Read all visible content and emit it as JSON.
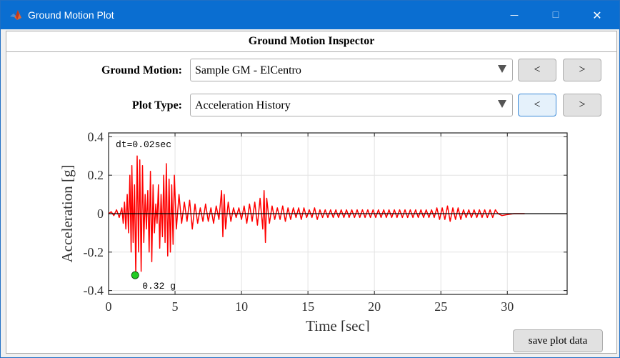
{
  "window": {
    "title": "Ground Motion Plot",
    "controls": [
      "—",
      "☐",
      "✕"
    ]
  },
  "panel": {
    "title": "Ground Motion Inspector",
    "ground_motion": {
      "label": "Ground Motion:",
      "value": "Sample GM - ElCentro",
      "prev": "<",
      "next": ">"
    },
    "plot_type": {
      "label": "Plot Type:",
      "value": "Acceleration History",
      "prev": "<",
      "next": ">"
    },
    "save_button": "save plot data"
  },
  "chart_data": {
    "type": "line",
    "title": "",
    "xlabel": "Time [sec]",
    "ylabel": "Acceleration [g]",
    "xlim": [
      0,
      34.5
    ],
    "ylim": [
      -0.42,
      0.42
    ],
    "xticks": [
      0,
      5,
      10,
      15,
      20,
      25,
      30
    ],
    "xtick_labels": [
      "0",
      "5",
      "10",
      "15",
      "20",
      "25",
      "30"
    ],
    "yticks": [
      -0.4,
      -0.2,
      0,
      0.2,
      0.4
    ],
    "ytick_labels": [
      "-0.4",
      "-0.2",
      "0",
      "0.2",
      "0.4"
    ],
    "grid": true,
    "line_color": "#ff0000",
    "annotations": {
      "dt": "dt=0.02sec",
      "peak_label": "0.32 g"
    },
    "peak_marker": {
      "x": 2.0,
      "y": -0.32,
      "color": "#22cc22"
    },
    "series": [
      {
        "values": [
          [
            0,
            0
          ],
          [
            0.2,
            0.01
          ],
          [
            0.4,
            -0.01
          ],
          [
            0.6,
            0.02
          ],
          [
            0.8,
            -0.02
          ],
          [
            1.0,
            0.03
          ],
          [
            1.1,
            -0.05
          ],
          [
            1.2,
            0.06
          ],
          [
            1.3,
            -0.08
          ],
          [
            1.4,
            0.1
          ],
          [
            1.5,
            -0.1
          ],
          [
            1.6,
            0.2
          ],
          [
            1.7,
            -0.2
          ],
          [
            1.75,
            0.25
          ],
          [
            1.85,
            -0.15
          ],
          [
            1.95,
            0.15
          ],
          [
            2.05,
            -0.32
          ],
          [
            2.15,
            0.3
          ],
          [
            2.25,
            -0.2
          ],
          [
            2.35,
            0.28
          ],
          [
            2.45,
            -0.3
          ],
          [
            2.55,
            0.25
          ],
          [
            2.65,
            -0.15
          ],
          [
            2.75,
            0.1
          ],
          [
            2.85,
            -0.08
          ],
          [
            2.95,
            0.12
          ],
          [
            3.05,
            -0.2
          ],
          [
            3.15,
            0.22
          ],
          [
            3.25,
            -0.25
          ],
          [
            3.35,
            0.15
          ],
          [
            3.45,
            -0.1
          ],
          [
            3.55,
            0.05
          ],
          [
            3.65,
            -0.05
          ],
          [
            3.75,
            0.15
          ],
          [
            3.85,
            -0.18
          ],
          [
            3.95,
            0.1
          ],
          [
            4.05,
            -0.12
          ],
          [
            4.15,
            0.2
          ],
          [
            4.25,
            -0.15
          ],
          [
            4.35,
            0.26
          ],
          [
            4.45,
            -0.22
          ],
          [
            4.55,
            0.18
          ],
          [
            4.65,
            -0.2
          ],
          [
            4.75,
            0.15
          ],
          [
            4.85,
            -0.16
          ],
          [
            4.95,
            0.2
          ],
          [
            5.1,
            -0.08
          ],
          [
            5.3,
            0.1
          ],
          [
            5.5,
            -0.05
          ],
          [
            5.7,
            0.06
          ],
          [
            5.9,
            -0.04
          ],
          [
            6.1,
            0.07
          ],
          [
            6.3,
            -0.08
          ],
          [
            6.5,
            0.05
          ],
          [
            6.7,
            -0.05
          ],
          [
            6.9,
            0.03
          ],
          [
            7.1,
            -0.04
          ],
          [
            7.3,
            0.05
          ],
          [
            7.5,
            -0.04
          ],
          [
            7.7,
            0.03
          ],
          [
            7.9,
            -0.05
          ],
          [
            8.1,
            0.04
          ],
          [
            8.3,
            -0.03
          ],
          [
            8.5,
            0.12
          ],
          [
            8.6,
            -0.12
          ],
          [
            8.7,
            0.1
          ],
          [
            8.8,
            -0.08
          ],
          [
            9.0,
            0.06
          ],
          [
            9.2,
            -0.04
          ],
          [
            9.4,
            0.03
          ],
          [
            9.6,
            -0.02
          ],
          [
            9.8,
            0.03
          ],
          [
            10.0,
            -0.03
          ],
          [
            10.2,
            0.04
          ],
          [
            10.4,
            -0.05
          ],
          [
            10.6,
            0.05
          ],
          [
            10.8,
            -0.04
          ],
          [
            11.0,
            0.06
          ],
          [
            11.2,
            -0.06
          ],
          [
            11.4,
            0.08
          ],
          [
            11.6,
            -0.08
          ],
          [
            11.7,
            0.12
          ],
          [
            11.8,
            -0.15
          ],
          [
            11.9,
            0.08
          ],
          [
            12.1,
            -0.05
          ],
          [
            12.3,
            0.04
          ],
          [
            12.5,
            -0.03
          ],
          [
            12.7,
            0.03
          ],
          [
            12.9,
            -0.03
          ],
          [
            13.1,
            0.04
          ],
          [
            13.3,
            -0.04
          ],
          [
            13.5,
            0.03
          ],
          [
            13.7,
            -0.03
          ],
          [
            13.9,
            0.03
          ],
          [
            14.1,
            -0.02
          ],
          [
            14.3,
            0.03
          ],
          [
            14.5,
            -0.03
          ],
          [
            14.7,
            0.03
          ],
          [
            14.9,
            -0.02
          ],
          [
            15.1,
            0.02
          ],
          [
            15.3,
            -0.02
          ],
          [
            15.5,
            0.03
          ],
          [
            15.7,
            -0.03
          ],
          [
            15.9,
            0.02
          ],
          [
            16.1,
            -0.02
          ],
          [
            16.3,
            0.02
          ],
          [
            16.5,
            -0.02
          ],
          [
            16.7,
            0.02
          ],
          [
            16.9,
            -0.02
          ],
          [
            17.1,
            0.02
          ],
          [
            17.3,
            -0.02
          ],
          [
            17.5,
            0.02
          ],
          [
            17.7,
            -0.02
          ],
          [
            17.9,
            0.02
          ],
          [
            18.1,
            -0.02
          ],
          [
            18.3,
            0.02
          ],
          [
            18.5,
            -0.02
          ],
          [
            18.7,
            0.02
          ],
          [
            18.9,
            -0.02
          ],
          [
            19.1,
            0.02
          ],
          [
            19.3,
            -0.02
          ],
          [
            19.5,
            0.02
          ],
          [
            19.7,
            -0.02
          ],
          [
            19.9,
            0.02
          ],
          [
            20.1,
            -0.02
          ],
          [
            20.3,
            0.02
          ],
          [
            20.5,
            -0.02
          ],
          [
            20.7,
            0.02
          ],
          [
            20.9,
            -0.02
          ],
          [
            21.1,
            0.02
          ],
          [
            21.3,
            -0.02
          ],
          [
            21.5,
            0.02
          ],
          [
            21.7,
            -0.02
          ],
          [
            21.9,
            0.02
          ],
          [
            22.1,
            -0.02
          ],
          [
            22.3,
            0.02
          ],
          [
            22.5,
            -0.02
          ],
          [
            22.7,
            0.02
          ],
          [
            22.9,
            -0.02
          ],
          [
            23.1,
            0.02
          ],
          [
            23.3,
            -0.02
          ],
          [
            23.5,
            0.02
          ],
          [
            23.7,
            -0.02
          ],
          [
            23.9,
            0.02
          ],
          [
            24.1,
            -0.02
          ],
          [
            24.3,
            0.02
          ],
          [
            24.5,
            -0.02
          ],
          [
            24.7,
            0.03
          ],
          [
            24.9,
            -0.03
          ],
          [
            25.1,
            0.03
          ],
          [
            25.3,
            -0.03
          ],
          [
            25.5,
            0.04
          ],
          [
            25.7,
            -0.04
          ],
          [
            25.9,
            0.03
          ],
          [
            26.1,
            -0.03
          ],
          [
            26.3,
            0.03
          ],
          [
            26.5,
            -0.03
          ],
          [
            26.7,
            0.02
          ],
          [
            26.9,
            -0.02
          ],
          [
            27.1,
            0.02
          ],
          [
            27.3,
            -0.02
          ],
          [
            27.5,
            0.02
          ],
          [
            27.7,
            -0.02
          ],
          [
            27.9,
            0.02
          ],
          [
            28.1,
            -0.02
          ],
          [
            28.3,
            0.02
          ],
          [
            28.5,
            -0.02
          ],
          [
            28.7,
            0.02
          ],
          [
            28.9,
            -0.02
          ],
          [
            29.1,
            0.02
          ],
          [
            29.3,
            0.0
          ],
          [
            29.6,
            -0.01
          ],
          [
            30.0,
            -0.005
          ],
          [
            30.5,
            0.0
          ],
          [
            31.0,
            0.0
          ],
          [
            31.3,
            0.0
          ]
        ]
      }
    ]
  }
}
